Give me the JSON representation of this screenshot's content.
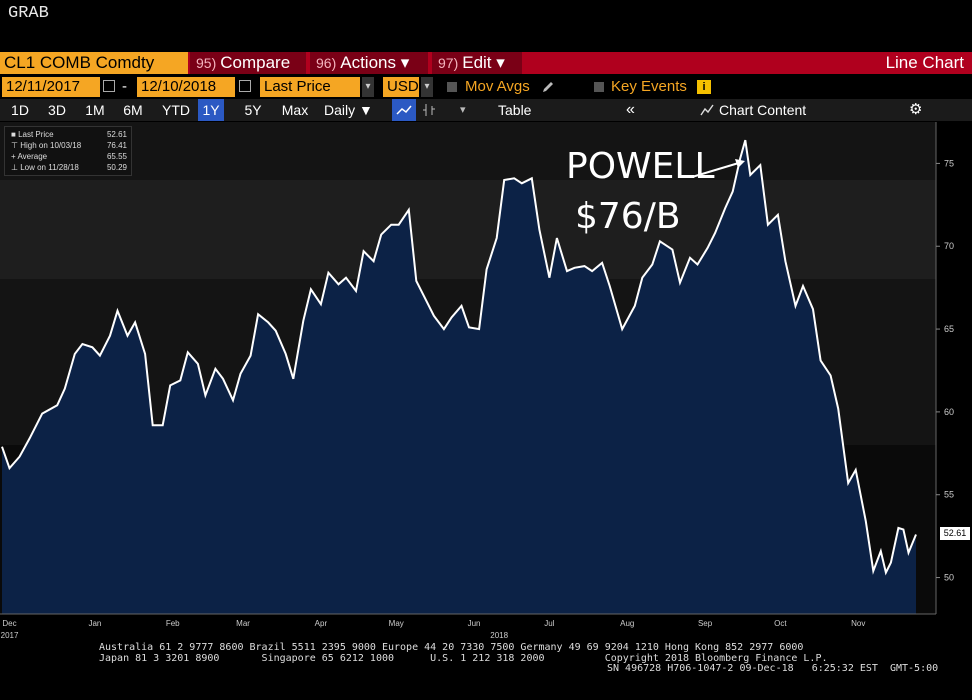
{
  "header": {
    "grab": "GRAB"
  },
  "toolbar": {
    "ticker": "CL1 COMB Comdty",
    "compare": {
      "num": "95)",
      "label": "Compare"
    },
    "actions": {
      "num": "96)",
      "label": "Actions ▾"
    },
    "edit": {
      "num": "97)",
      "label": "Edit ▾"
    },
    "chart_type": "Line Chart"
  },
  "settings": {
    "start_date": "12/11/2017",
    "end_date": "12/10/2018",
    "field": "Last Price",
    "currency": "USD",
    "mov_avgs": "Mov Avgs",
    "key_events": "Key Events"
  },
  "periods": [
    {
      "label": "1D",
      "selected": false
    },
    {
      "label": "3D",
      "selected": false
    },
    {
      "label": "1M",
      "selected": false
    },
    {
      "label": "6M",
      "selected": false
    },
    {
      "label": "YTD",
      "selected": false
    },
    {
      "label": "1Y",
      "selected": true
    },
    {
      "label": "5Y",
      "selected": false
    },
    {
      "label": "Max",
      "selected": false
    }
  ],
  "frequency": "Daily ▼",
  "table_label": "Table",
  "chart_content_label": "Chart Content",
  "legend": [
    {
      "label": "Last Price",
      "value": "52.61"
    },
    {
      "label": "High on 10/03/18",
      "value": "76.41"
    },
    {
      "label": "Average",
      "value": "65.55"
    },
    {
      "label": "Low on 11/28/18",
      "value": "50.29"
    }
  ],
  "annotation": {
    "line1": "POWELL",
    "line2": "$76/B"
  },
  "last_value_label": "52.61",
  "colors": {
    "area": "#0c2246",
    "line": "#ffffff",
    "accent": "#f5a623",
    "toolbar_red": "#b0001e",
    "selected": "#2b59c3"
  },
  "footer": {
    "line1": "Australia 61 2 9777 8600 Brazil 5511 2395 9000 Europe 44 20 7330 7500 Germany 49 69 9204 1210 Hong Kong 852 2977 6000",
    "line2": "Japan 81 3 3201 8900       Singapore 65 6212 1000      U.S. 1 212 318 2000          Copyright 2018 Bloomberg Finance L.P.",
    "line3": "SN 496728 H706-1047-2 09-Dec-18   6:25:32 EST  GMT-5:00"
  },
  "chart_data": {
    "type": "area",
    "title": "",
    "xlabel": "",
    "ylabel": "",
    "ylim": [
      47.8,
      77.5
    ],
    "yticks": [
      50,
      55,
      60,
      65,
      70,
      75
    ],
    "xticks": [
      {
        "label": "Dec",
        "date": "2017-12-14"
      },
      {
        "label": "Jan",
        "date": "2018-01-17"
      },
      {
        "label": "Feb",
        "date": "2018-02-17"
      },
      {
        "label": "Mar",
        "date": "2018-03-17"
      },
      {
        "label": "Apr",
        "date": "2018-04-17"
      },
      {
        "label": "May",
        "date": "2018-05-17"
      },
      {
        "label": "Jun",
        "date": "2018-06-17"
      },
      {
        "label": "Jul",
        "date": "2018-07-17"
      },
      {
        "label": "Aug",
        "date": "2018-08-17"
      },
      {
        "label": "Sep",
        "date": "2018-09-17"
      },
      {
        "label": "Oct",
        "date": "2018-10-17"
      },
      {
        "label": "Nov",
        "date": "2018-11-17"
      }
    ],
    "year_labels": [
      {
        "label": "2017",
        "date": "2017-12-14"
      },
      {
        "label": "2018",
        "date": "2018-06-27"
      }
    ],
    "grid": false,
    "legend_position": "top-left",
    "series": [
      {
        "name": "Last Price",
        "points": [
          [
            "2017-12-11",
            57.9
          ],
          [
            "2017-12-14",
            56.6
          ],
          [
            "2017-12-18",
            57.3
          ],
          [
            "2017-12-22",
            58.4
          ],
          [
            "2017-12-27",
            59.9
          ],
          [
            "2018-01-02",
            60.4
          ],
          [
            "2018-01-05",
            61.4
          ],
          [
            "2018-01-09",
            63.5
          ],
          [
            "2018-01-12",
            64.1
          ],
          [
            "2018-01-16",
            63.9
          ],
          [
            "2018-01-19",
            63.4
          ],
          [
            "2018-01-23",
            64.6
          ],
          [
            "2018-01-26",
            66.1
          ],
          [
            "2018-01-30",
            64.6
          ],
          [
            "2018-02-02",
            65.4
          ],
          [
            "2018-02-06",
            63.5
          ],
          [
            "2018-02-09",
            59.2
          ],
          [
            "2018-02-13",
            59.2
          ],
          [
            "2018-02-16",
            61.6
          ],
          [
            "2018-02-20",
            61.9
          ],
          [
            "2018-02-23",
            63.6
          ],
          [
            "2018-02-27",
            62.9
          ],
          [
            "2018-03-02",
            61.0
          ],
          [
            "2018-03-06",
            62.6
          ],
          [
            "2018-03-09",
            62.0
          ],
          [
            "2018-03-13",
            60.7
          ],
          [
            "2018-03-16",
            62.3
          ],
          [
            "2018-03-20",
            63.4
          ],
          [
            "2018-03-23",
            65.9
          ],
          [
            "2018-03-27",
            65.4
          ],
          [
            "2018-03-30",
            64.9
          ],
          [
            "2018-04-03",
            63.5
          ],
          [
            "2018-04-06",
            62.0
          ],
          [
            "2018-04-10",
            65.5
          ],
          [
            "2018-04-13",
            67.4
          ],
          [
            "2018-04-17",
            66.5
          ],
          [
            "2018-04-20",
            68.4
          ],
          [
            "2018-04-24",
            67.7
          ],
          [
            "2018-04-27",
            68.1
          ],
          [
            "2018-05-01",
            67.3
          ],
          [
            "2018-05-04",
            69.7
          ],
          [
            "2018-05-08",
            69.1
          ],
          [
            "2018-05-11",
            70.7
          ],
          [
            "2018-05-15",
            71.3
          ],
          [
            "2018-05-18",
            71.3
          ],
          [
            "2018-05-22",
            72.2
          ],
          [
            "2018-05-25",
            67.9
          ],
          [
            "2018-05-29",
            66.7
          ],
          [
            "2018-06-01",
            65.8
          ],
          [
            "2018-06-05",
            65.0
          ],
          [
            "2018-06-08",
            65.7
          ],
          [
            "2018-06-12",
            66.4
          ],
          [
            "2018-06-15",
            65.1
          ],
          [
            "2018-06-19",
            65.0
          ],
          [
            "2018-06-22",
            68.6
          ],
          [
            "2018-06-26",
            70.5
          ],
          [
            "2018-06-29",
            74.0
          ],
          [
            "2018-07-03",
            74.1
          ],
          [
            "2018-07-06",
            73.8
          ],
          [
            "2018-07-10",
            74.1
          ],
          [
            "2018-07-13",
            71.0
          ],
          [
            "2018-07-17",
            68.1
          ],
          [
            "2018-07-20",
            70.5
          ],
          [
            "2018-07-24",
            68.5
          ],
          [
            "2018-07-27",
            68.7
          ],
          [
            "2018-07-31",
            68.8
          ],
          [
            "2018-08-03",
            68.5
          ],
          [
            "2018-08-07",
            69.0
          ],
          [
            "2018-08-10",
            67.6
          ],
          [
            "2018-08-15",
            65.0
          ],
          [
            "2018-08-20",
            66.4
          ],
          [
            "2018-08-23",
            68.1
          ],
          [
            "2018-08-27",
            68.9
          ],
          [
            "2018-08-30",
            70.3
          ],
          [
            "2018-09-04",
            69.8
          ],
          [
            "2018-09-07",
            67.8
          ],
          [
            "2018-09-11",
            69.3
          ],
          [
            "2018-09-14",
            68.9
          ],
          [
            "2018-09-18",
            69.9
          ],
          [
            "2018-09-21",
            70.8
          ],
          [
            "2018-09-25",
            72.3
          ],
          [
            "2018-09-28",
            73.3
          ],
          [
            "2018-10-01",
            75.3
          ],
          [
            "2018-10-03",
            76.4
          ],
          [
            "2018-10-05",
            74.3
          ],
          [
            "2018-10-09",
            74.9
          ],
          [
            "2018-10-12",
            71.3
          ],
          [
            "2018-10-16",
            71.9
          ],
          [
            "2018-10-19",
            69.1
          ],
          [
            "2018-10-23",
            66.4
          ],
          [
            "2018-10-26",
            67.6
          ],
          [
            "2018-10-30",
            66.2
          ],
          [
            "2018-11-02",
            63.1
          ],
          [
            "2018-11-06",
            62.2
          ],
          [
            "2018-11-09",
            60.2
          ],
          [
            "2018-11-13",
            55.7
          ],
          [
            "2018-11-16",
            56.5
          ],
          [
            "2018-11-20",
            53.4
          ],
          [
            "2018-11-23",
            50.4
          ],
          [
            "2018-11-26",
            51.6
          ],
          [
            "2018-11-28",
            50.3
          ],
          [
            "2018-11-30",
            50.9
          ],
          [
            "2018-12-03",
            53.0
          ],
          [
            "2018-12-05",
            52.9
          ],
          [
            "2018-12-07",
            51.5
          ],
          [
            "2018-12-10",
            52.6
          ]
        ]
      }
    ]
  }
}
